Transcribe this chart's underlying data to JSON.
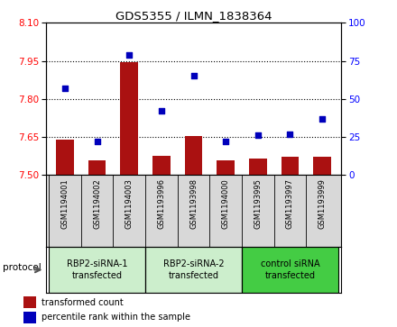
{
  "title": "GDS5355 / ILMN_1838364",
  "samples": [
    "GSM1194001",
    "GSM1194002",
    "GSM1194003",
    "GSM1193996",
    "GSM1193998",
    "GSM1194000",
    "GSM1193995",
    "GSM1193997",
    "GSM1193999"
  ],
  "bar_values": [
    7.638,
    7.558,
    7.945,
    7.575,
    7.655,
    7.558,
    7.565,
    7.572,
    7.573
  ],
  "dot_values": [
    57,
    22,
    79,
    42,
    65,
    22,
    26,
    27,
    37
  ],
  "ylim_left": [
    7.5,
    8.1
  ],
  "ylim_right": [
    0,
    100
  ],
  "yticks_left": [
    7.5,
    7.65,
    7.8,
    7.95,
    8.1
  ],
  "yticks_right": [
    0,
    25,
    50,
    75,
    100
  ],
  "bar_color": "#AA1111",
  "dot_color": "#0000BB",
  "groups": [
    {
      "label": "RBP2-siRNA-1\ntransfected",
      "start": 0,
      "end": 3,
      "color": "#CCEECC"
    },
    {
      "label": "RBP2-siRNA-2\ntransfected",
      "start": 3,
      "end": 6,
      "color": "#CCEECC"
    },
    {
      "label": "control siRNA\ntransfected",
      "start": 6,
      "end": 9,
      "color": "#44CC44"
    }
  ],
  "legend_bar_label": "transformed count",
  "legend_dot_label": "percentile rank within the sample",
  "protocol_label": "protocol"
}
